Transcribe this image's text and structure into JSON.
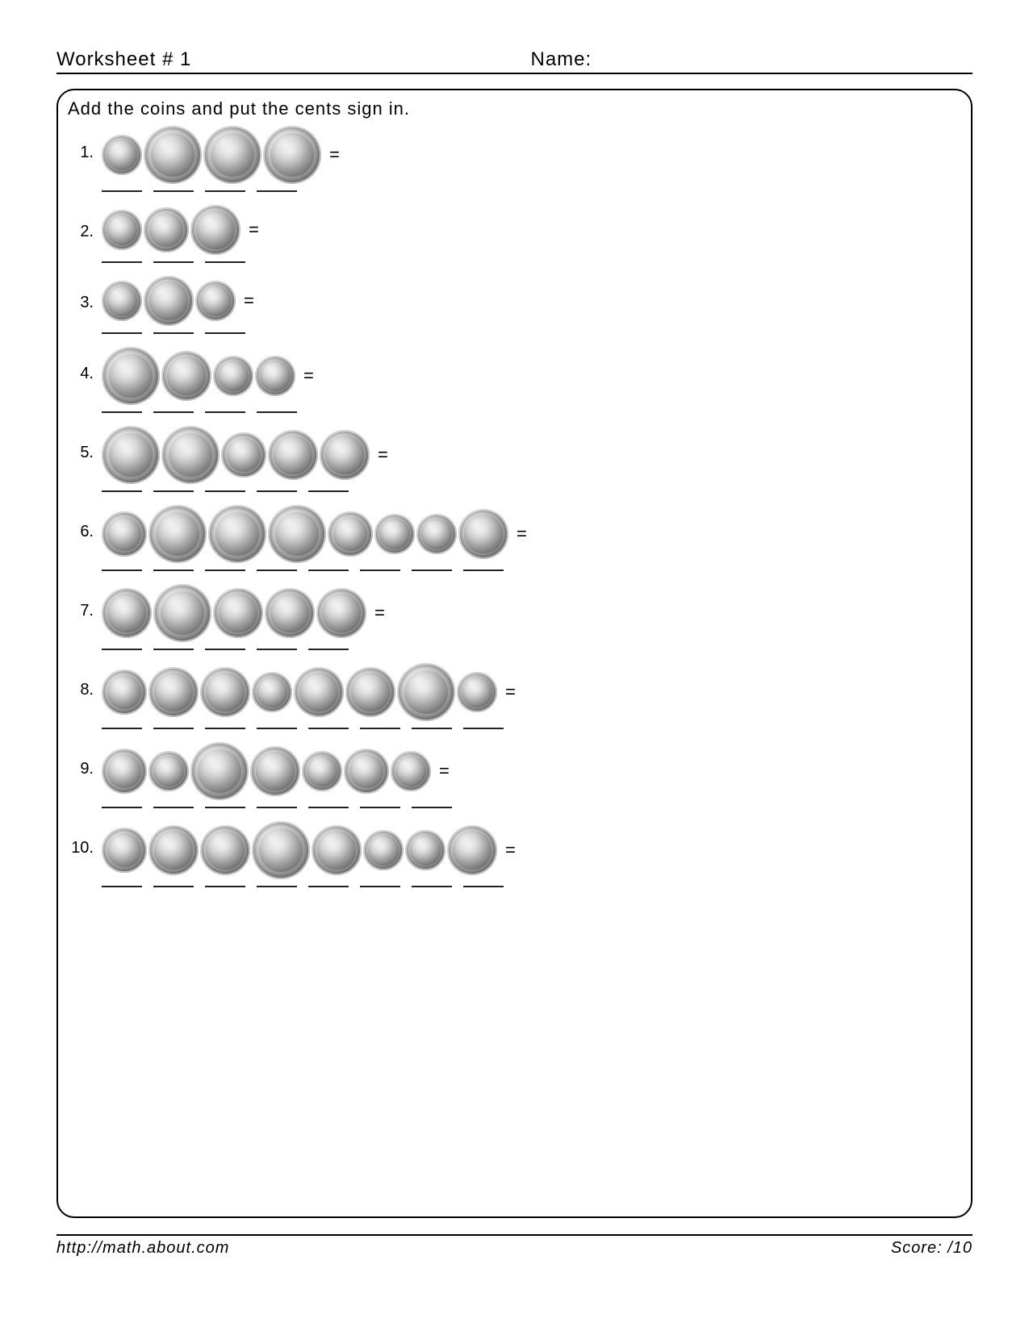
{
  "header": {
    "worksheet_label": "Worksheet #  1",
    "name_label": "Name:"
  },
  "instructions": "Add the coins and put the cents sign in.",
  "equals_sign": "=",
  "coin_sizes": {
    "quarter": 72,
    "nickel": 62,
    "penny": 56,
    "dime": 50
  },
  "blank_width": 50,
  "problems": [
    {
      "num": "1.",
      "coins": [
        "dime",
        "quarter",
        "quarter",
        "quarter"
      ]
    },
    {
      "num": "2.",
      "coins": [
        "dime",
        "penny",
        "nickel"
      ]
    },
    {
      "num": "3.",
      "coins": [
        "dime",
        "nickel",
        "dime"
      ]
    },
    {
      "num": "4.",
      "coins": [
        "quarter",
        "nickel",
        "dime",
        "dime"
      ]
    },
    {
      "num": "5.",
      "coins": [
        "quarter",
        "quarter",
        "penny",
        "nickel",
        "nickel"
      ]
    },
    {
      "num": "6.",
      "coins": [
        "penny",
        "quarter",
        "quarter",
        "quarter",
        "penny",
        "dime",
        "dime",
        "nickel"
      ]
    },
    {
      "num": "7.",
      "coins": [
        "nickel",
        "quarter",
        "nickel",
        "nickel",
        "nickel"
      ]
    },
    {
      "num": "8.",
      "coins": [
        "penny",
        "nickel",
        "nickel",
        "dime",
        "nickel",
        "nickel",
        "quarter",
        "dime"
      ]
    },
    {
      "num": "9.",
      "coins": [
        "penny",
        "dime",
        "quarter",
        "nickel",
        "dime",
        "penny",
        "dime"
      ]
    },
    {
      "num": "10.",
      "coins": [
        "penny",
        "nickel",
        "nickel",
        "quarter",
        "nickel",
        "dime",
        "dime",
        "nickel"
      ]
    }
  ],
  "footer": {
    "url": "http://math.about.com",
    "score_label": "Score:       /10"
  },
  "colors": {
    "text": "#000000",
    "border": "#000000",
    "blank": "#222222",
    "background": "#ffffff"
  },
  "fonts": {
    "body_size_pt": 16,
    "header_size_pt": 18,
    "family": "Arial"
  }
}
